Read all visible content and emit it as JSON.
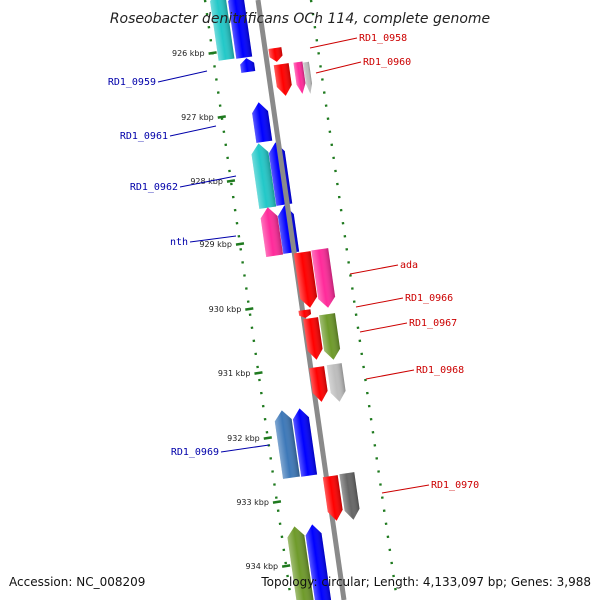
{
  "title": "Roseobacter denitrificans OCh 114, complete genome",
  "footer": {
    "accession": "Accession: NC_008209",
    "info": "Topology: circular; Length: 4,133,097 bp; Genes: 3,988"
  },
  "ticks": [
    {
      "label": "926 kbp"
    },
    {
      "label": "927 kbp"
    },
    {
      "label": "928 kbp"
    },
    {
      "label": "929 kbp"
    },
    {
      "label": "930 kbp"
    },
    {
      "label": "931 kbp"
    },
    {
      "label": "932 kbp"
    },
    {
      "label": "933 kbp"
    },
    {
      "label": "934 kbp"
    }
  ],
  "gene_labels": [
    {
      "name": "RD1_0958",
      "strand": "+"
    },
    {
      "name": "RD1_0960",
      "strand": "+"
    },
    {
      "name": "RD1_0959",
      "strand": "-"
    },
    {
      "name": "RD1_0961",
      "strand": "-"
    },
    {
      "name": "RD1_0962",
      "strand": "-"
    },
    {
      "name": "nth",
      "strand": "-"
    },
    {
      "name": "ada",
      "strand": "+"
    },
    {
      "name": "RD1_0966",
      "strand": "+"
    },
    {
      "name": "RD1_0967",
      "strand": "+"
    },
    {
      "name": "RD1_0968",
      "strand": "+"
    },
    {
      "name": "RD1_0969",
      "strand": "-"
    },
    {
      "name": "RD1_0970",
      "strand": "+"
    }
  ],
  "colors": {
    "backbone": "#8a8a8a",
    "tick": "#1f7a1f",
    "plus_label": "#cc0000",
    "minus_label": "#0000aa",
    "red": "#ff0000",
    "pink": "#ff2a9a",
    "gray": "#bdbdbd",
    "darkgray": "#666666",
    "olive": "#6e9a2a",
    "blue": "#0000ff",
    "cyan": "#22c8c8",
    "steel": "#3d78b8"
  }
}
